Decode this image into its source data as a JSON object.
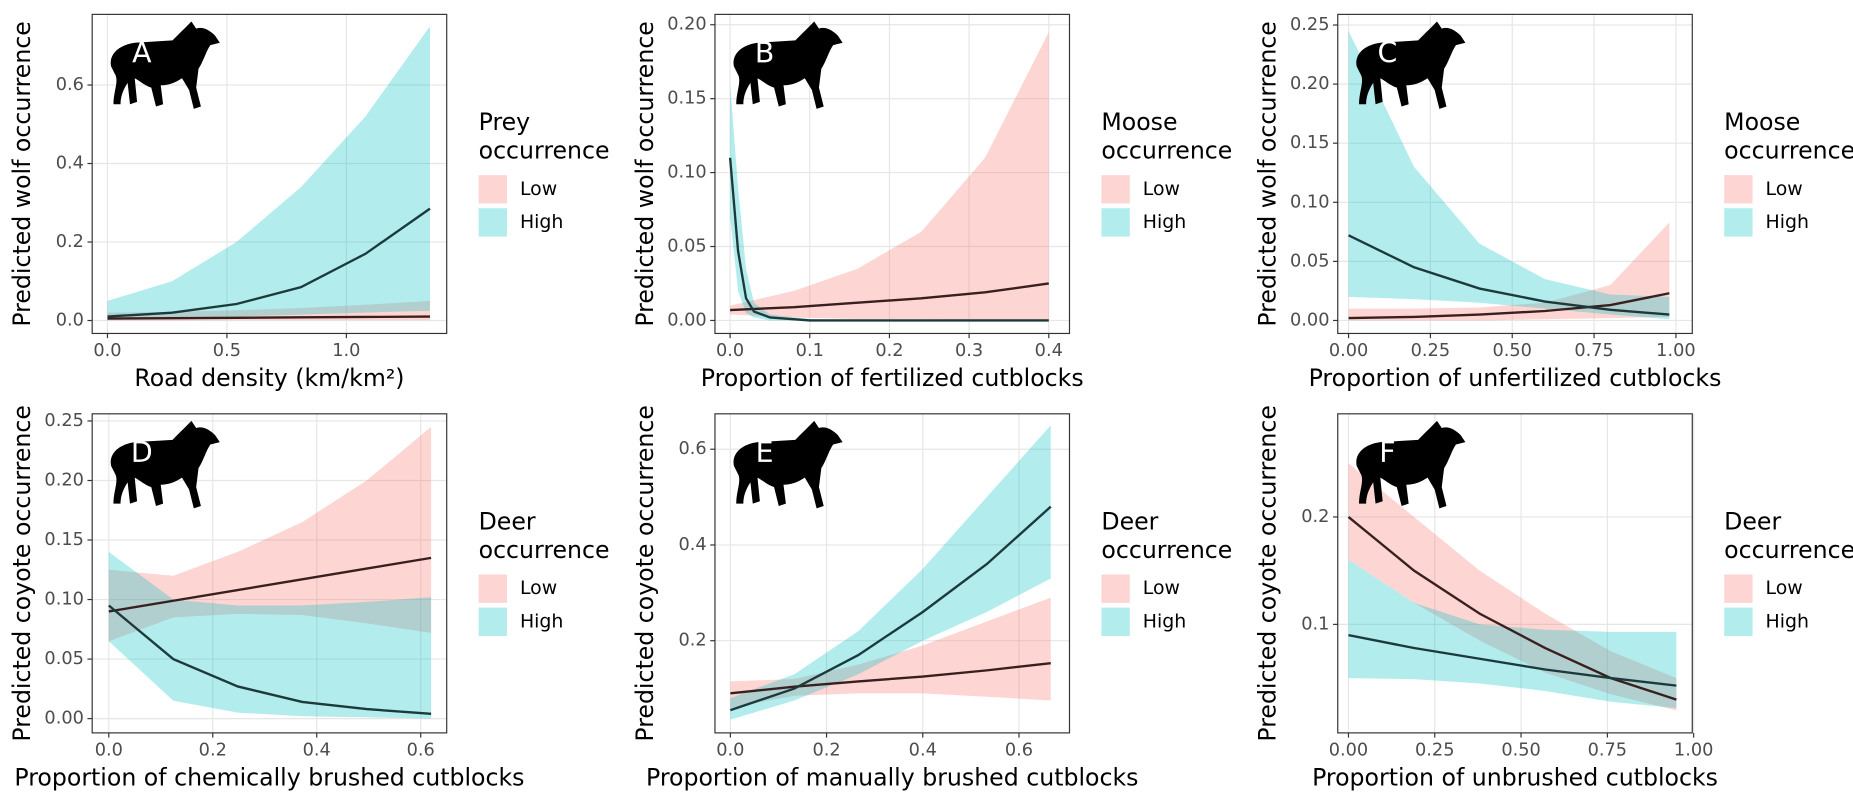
{
  "chart_data": [
    {
      "type": "line",
      "label": "A",
      "xlabel": "Road density (km/km²)",
      "ylabel": "Predicted wolf occurrence",
      "legend_title": "Prey occurrence",
      "grid": true,
      "xlim": [
        -0.064,
        1.42
      ],
      "ylim": [
        -0.033,
        0.78
      ],
      "xticks": [
        {
          "value": 0,
          "label": "0.0"
        },
        0.5,
        {
          "value": 1,
          "label": "1.0"
        }
      ],
      "yticks": [
        {
          "value": 0,
          "label": "0.0"
        },
        0.2,
        0.4,
        0.6
      ],
      "series": [
        {
          "name": "Low",
          "color": "#F8766D",
          "line_color": "#3a1f1f",
          "x": [
            0,
            0.27,
            0.54,
            0.81,
            1.08,
            1.35
          ],
          "values": [
            0.005,
            0.006,
            0.007,
            0.008,
            0.009,
            0.01
          ],
          "lower": [
            0,
            0,
            0.001,
            0.001,
            0.001,
            0.001
          ],
          "upper": [
            0.02,
            0.022,
            0.026,
            0.032,
            0.04,
            0.05
          ]
        },
        {
          "name": "High",
          "color": "#00BFC4",
          "line_color": "#1c3a3b",
          "x": [
            0,
            0.27,
            0.54,
            0.81,
            1.08,
            1.35
          ],
          "values": [
            0.01,
            0.02,
            0.042,
            0.085,
            0.17,
            0.285
          ],
          "lower": [
            0.003,
            0.006,
            0.01,
            0.015,
            0.02,
            0.025
          ],
          "upper": [
            0.05,
            0.1,
            0.2,
            0.34,
            0.52,
            0.75
          ]
        }
      ]
    },
    {
      "type": "line",
      "label": "B",
      "xlabel": "Proportion of fertilized cutblocks",
      "ylabel": "Predicted wolf occurrence",
      "legend_title": "Moose occurrence",
      "grid": true,
      "xlim": [
        -0.019,
        0.426
      ],
      "ylim": [
        -0.0088,
        0.207
      ],
      "xticks": [
        {
          "value": 0,
          "label": "0.0"
        },
        0.1,
        0.2,
        0.3,
        0.4
      ],
      "yticks": [
        {
          "value": 0,
          "label": "0.00"
        },
        {
          "value": 0.05,
          "label": "0.05"
        },
        {
          "value": 0.1,
          "label": "0.10"
        },
        {
          "value": 0.15,
          "label": "0.15"
        },
        {
          "value": 0.2,
          "label": "0.20"
        }
      ],
      "series": [
        {
          "name": "Low",
          "color": "#F8766D",
          "line_color": "#3a1f1f",
          "x": [
            0,
            0.08,
            0.16,
            0.24,
            0.32,
            0.4
          ],
          "values": [
            0.007,
            0.009,
            0.012,
            0.015,
            0.019,
            0.025
          ],
          "lower": [
            0.004,
            0.002,
            0.001,
            0.001,
            0,
            0
          ],
          "upper": [
            0.01,
            0.02,
            0.035,
            0.06,
            0.11,
            0.195
          ]
        },
        {
          "name": "High",
          "color": "#00BFC4",
          "line_color": "#1c3a3b",
          "x": [
            0,
            0.01,
            0.02,
            0.03,
            0.05,
            0.1,
            0.2,
            0.4
          ],
          "values": [
            0.11,
            0.047,
            0.015,
            0.006,
            0.002,
            0,
            0,
            0
          ],
          "lower": [
            0.07,
            0.02,
            0.005,
            0.002,
            0,
            0,
            0,
            0
          ],
          "upper": [
            0.16,
            0.09,
            0.035,
            0.012,
            0.004,
            0.001,
            0,
            0
          ]
        }
      ]
    },
    {
      "type": "line",
      "label": "C",
      "xlabel": "Proportion of unfertilized cutblocks",
      "ylabel": "Predicted wolf occurrence",
      "legend_title": "Moose occurrence",
      "grid": true,
      "xlim": [
        -0.033,
        1.05
      ],
      "ylim": [
        -0.011,
        0.259
      ],
      "xticks": [
        {
          "value": 0,
          "label": "0.00"
        },
        0.25,
        {
          "value": 0.5,
          "label": "0.50"
        },
        0.75,
        {
          "value": 1,
          "label": "1.00"
        }
      ],
      "yticks": [
        {
          "value": 0,
          "label": "0.00"
        },
        0.05,
        {
          "value": 0.1,
          "label": "0.10"
        },
        0.15,
        {
          "value": 0.2,
          "label": "0.20"
        },
        0.25
      ],
      "series": [
        {
          "name": "Low",
          "color": "#F8766D",
          "line_color": "#3a1f1f",
          "x": [
            0,
            0.2,
            0.4,
            0.6,
            0.8,
            0.98
          ],
          "values": [
            0.002,
            0.003,
            0.005,
            0.008,
            0.013,
            0.023
          ],
          "lower": [
            0,
            0,
            0,
            0.001,
            0.002,
            0.003
          ],
          "upper": [
            0.01,
            0.01,
            0.011,
            0.015,
            0.03,
            0.083
          ]
        },
        {
          "name": "High",
          "color": "#00BFC4",
          "line_color": "#1c3a3b",
          "x": [
            0,
            0.2,
            0.4,
            0.6,
            0.8,
            0.98
          ],
          "values": [
            0.072,
            0.045,
            0.027,
            0.016,
            0.009,
            0.005
          ],
          "lower": [
            0.02,
            0.018,
            0.015,
            0.01,
            0.005,
            0.001
          ],
          "upper": [
            0.245,
            0.13,
            0.065,
            0.035,
            0.022,
            0.02
          ]
        }
      ]
    },
    {
      "type": "line",
      "label": "D",
      "xlabel": "Proportion of chemically brushed cutblocks",
      "ylabel": "Predicted coyote occurrence",
      "legend_title": "Deer occurrence",
      "grid": true,
      "xlim": [
        -0.032,
        0.65
      ],
      "ylim": [
        -0.012,
        0.256
      ],
      "xticks": [
        {
          "value": 0,
          "label": "0.0"
        },
        0.2,
        0.4,
        0.6
      ],
      "yticks": [
        {
          "value": 0,
          "label": "0.00"
        },
        0.05,
        {
          "value": 0.1,
          "label": "0.10"
        },
        0.15,
        {
          "value": 0.2,
          "label": "0.20"
        },
        0.25
      ],
      "series": [
        {
          "name": "Low",
          "color": "#F8766D",
          "line_color": "#3a1f1f",
          "x": [
            0,
            0.124,
            0.248,
            0.372,
            0.496,
            0.62
          ],
          "values": [
            0.09,
            0.099,
            0.108,
            0.117,
            0.126,
            0.135
          ],
          "lower": [
            0.065,
            0.085,
            0.088,
            0.087,
            0.08,
            0.072
          ],
          "upper": [
            0.125,
            0.12,
            0.14,
            0.165,
            0.2,
            0.245
          ]
        },
        {
          "name": "High",
          "color": "#00BFC4",
          "line_color": "#1c3a3b",
          "x": [
            0,
            0.124,
            0.248,
            0.372,
            0.496,
            0.62
          ],
          "values": [
            0.095,
            0.05,
            0.027,
            0.014,
            0.008,
            0.004
          ],
          "lower": [
            0.065,
            0.015,
            0.005,
            0.002,
            0.001,
            0
          ],
          "upper": [
            0.14,
            0.1,
            0.095,
            0.095,
            0.098,
            0.102
          ]
        }
      ]
    },
    {
      "type": "line",
      "label": "E",
      "xlabel": "Proportion of manually brushed cutblocks",
      "ylabel": "Predicted coyote occurrence",
      "legend_title": "Deer occurrence",
      "grid": true,
      "xlim": [
        -0.032,
        0.705
      ],
      "ylim": [
        0.0074,
        0.674
      ],
      "xticks": [
        {
          "value": 0,
          "label": "0.0"
        },
        0.2,
        0.4,
        0.6
      ],
      "yticks": [
        0.2,
        0.4,
        0.6
      ],
      "series": [
        {
          "name": "Low",
          "color": "#F8766D",
          "line_color": "#3a1f1f",
          "x": [
            0,
            0.133,
            0.266,
            0.4,
            0.533,
            0.666
          ],
          "values": [
            0.09,
            0.104,
            0.115,
            0.125,
            0.138,
            0.153
          ],
          "lower": [
            0.06,
            0.085,
            0.09,
            0.09,
            0.083,
            0.075
          ],
          "upper": [
            0.115,
            0.12,
            0.15,
            0.19,
            0.24,
            0.29
          ]
        },
        {
          "name": "High",
          "color": "#00BFC4",
          "line_color": "#1c3a3b",
          "x": [
            0,
            0.133,
            0.266,
            0.4,
            0.533,
            0.666
          ],
          "values": [
            0.055,
            0.1,
            0.17,
            0.26,
            0.36,
            0.48
          ],
          "lower": [
            0.035,
            0.075,
            0.13,
            0.2,
            0.26,
            0.33
          ],
          "upper": [
            0.08,
            0.13,
            0.22,
            0.35,
            0.5,
            0.65
          ]
        }
      ]
    },
    {
      "type": "line",
      "label": "F",
      "xlabel": "Proportion of unbrushed cutblocks",
      "ylabel": "Predicted coyote occurrence",
      "legend_title": "Deer occurrence",
      "grid": true,
      "xlim": [
        -0.031,
        0.996
      ],
      "ylim": [
        -0.001,
        0.296
      ],
      "xticks": [
        {
          "value": 0,
          "label": "0.00"
        },
        0.25,
        {
          "value": 0.5,
          "label": "0.50"
        },
        0.75,
        {
          "value": 1,
          "label": "1.00"
        }
      ],
      "yticks": [
        0.1,
        0.2
      ],
      "series": [
        {
          "name": "Low",
          "color": "#F8766D",
          "line_color": "#3a1f1f",
          "x": [
            0,
            0.19,
            0.38,
            0.57,
            0.76,
            0.95
          ],
          "values": [
            0.2,
            0.15,
            0.11,
            0.078,
            0.05,
            0.03
          ],
          "lower": [
            0.16,
            0.12,
            0.085,
            0.055,
            0.035,
            0.02
          ],
          "upper": [
            0.25,
            0.2,
            0.15,
            0.11,
            0.075,
            0.05
          ]
        },
        {
          "name": "High",
          "color": "#00BFC4",
          "line_color": "#1c3a3b",
          "x": [
            0,
            0.19,
            0.38,
            0.57,
            0.76,
            0.95
          ],
          "values": [
            0.09,
            0.078,
            0.068,
            0.058,
            0.05,
            0.043
          ],
          "lower": [
            0.05,
            0.049,
            0.045,
            0.038,
            0.028,
            0.022
          ],
          "upper": [
            0.16,
            0.12,
            0.1,
            0.095,
            0.093,
            0.093
          ]
        }
      ]
    }
  ]
}
